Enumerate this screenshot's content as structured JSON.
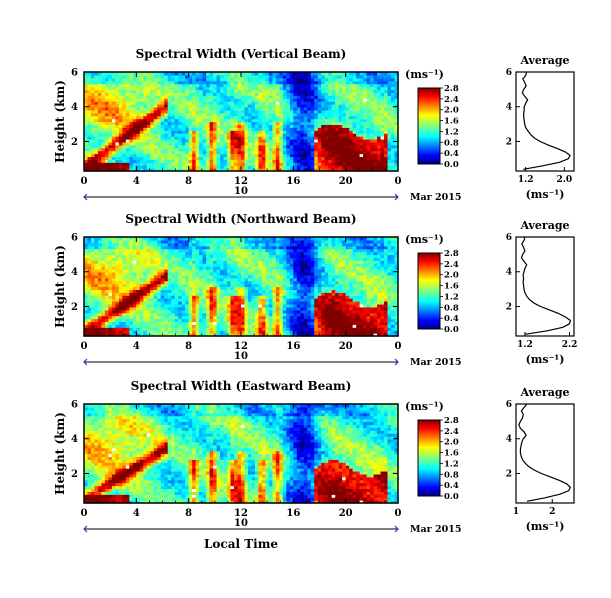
{
  "figure": {
    "shared_xlabel": "Local Time",
    "date_label": "10",
    "month_year": "Mar 2015",
    "colorbar_unit": "(ms⁻¹)",
    "profile_title": "Average",
    "profile_xlabel": "(ms⁻¹)"
  },
  "chart_data": [
    {
      "type": "heatmap",
      "title": "Spectral Width (Vertical Beam)",
      "ylabel": "Height (km)",
      "xlabel": "Local Time",
      "x_ticks": [
        "0",
        "4",
        "8",
        "12",
        "16",
        "20",
        "0"
      ],
      "xlim": [
        0,
        24
      ],
      "y_ticks": [
        "2",
        "4",
        "6"
      ],
      "ylim": [
        0.3,
        6
      ],
      "colorbar": {
        "range": [
          0,
          2.8
        ],
        "ticks": [
          "0.0",
          "0.4",
          "0.8",
          "1.2",
          "1.6",
          "2.0",
          "2.4",
          "2.8"
        ],
        "colormap": "jet",
        "unit": "(ms⁻¹)"
      },
      "profile": {
        "title": "Average",
        "xlim": [
          1.0,
          2.2
        ],
        "x_ticks": [
          "1.2",
          "2.0"
        ],
        "y_ticks": [
          "2",
          "4",
          "6"
        ],
        "height": [
          0.4,
          0.6,
          0.8,
          1.0,
          1.2,
          1.4,
          1.6,
          1.8,
          2.0,
          2.2,
          2.4,
          2.6,
          2.8,
          3.0,
          3.2,
          3.4,
          3.6,
          3.8,
          4.0,
          4.2,
          4.4,
          4.6,
          4.8,
          5.0,
          5.2,
          5.4,
          5.6,
          5.8,
          6.0
        ],
        "value": [
          1.15,
          1.55,
          1.9,
          2.08,
          2.12,
          2.02,
          1.85,
          1.66,
          1.5,
          1.38,
          1.3,
          1.25,
          1.2,
          1.18,
          1.17,
          1.16,
          1.16,
          1.17,
          1.17,
          1.2,
          1.24,
          1.18,
          1.13,
          1.16,
          1.21,
          1.18,
          1.14,
          1.2,
          1.22
        ]
      }
    },
    {
      "type": "heatmap",
      "title": "Spectral Width (Northward Beam)",
      "ylabel": "Height (km)",
      "xlabel": "Local Time",
      "x_ticks": [
        "0",
        "4",
        "8",
        "12",
        "16",
        "20",
        "0"
      ],
      "xlim": [
        0,
        24
      ],
      "y_ticks": [
        "2",
        "4",
        "6"
      ],
      "ylim": [
        0.3,
        6
      ],
      "colorbar": {
        "range": [
          0,
          2.8
        ],
        "ticks": [
          "0.0",
          "0.4",
          "0.8",
          "1.2",
          "1.6",
          "2.0",
          "2.4",
          "2.8"
        ],
        "colormap": "jet",
        "unit": "(ms⁻¹)"
      },
      "profile": {
        "title": "Average",
        "xlim": [
          1.0,
          2.3
        ],
        "x_ticks": [
          "1.2",
          "2.2"
        ],
        "y_ticks": [
          "2",
          "4",
          "6"
        ],
        "height": [
          0.4,
          0.6,
          0.8,
          1.0,
          1.2,
          1.4,
          1.6,
          1.8,
          2.0,
          2.2,
          2.4,
          2.6,
          2.8,
          3.0,
          3.2,
          3.4,
          3.6,
          3.8,
          4.0,
          4.2,
          4.4,
          4.6,
          4.8,
          5.0,
          5.2,
          5.4,
          5.6,
          5.8,
          6.0
        ],
        "value": [
          1.2,
          1.7,
          2.05,
          2.2,
          2.22,
          2.1,
          1.95,
          1.75,
          1.55,
          1.4,
          1.3,
          1.24,
          1.2,
          1.18,
          1.17,
          1.16,
          1.17,
          1.16,
          1.18,
          1.2,
          1.24,
          1.18,
          1.12,
          1.15,
          1.2,
          1.17,
          1.13,
          1.18,
          1.2
        ]
      }
    },
    {
      "type": "heatmap",
      "title": "Spectral Width (Eastward Beam)",
      "ylabel": "Height (km)",
      "xlabel": "Local Time",
      "x_ticks": [
        "0",
        "4",
        "8",
        "12",
        "16",
        "20",
        "0"
      ],
      "xlim": [
        0,
        24
      ],
      "y_ticks": [
        "2",
        "4",
        "6"
      ],
      "ylim": [
        0.3,
        6
      ],
      "colorbar": {
        "range": [
          0,
          2.8
        ],
        "ticks": [
          "0.0",
          "0.4",
          "0.8",
          "1.2",
          "1.6",
          "2.0",
          "2.4",
          "2.8"
        ],
        "colormap": "jet",
        "unit": "(ms⁻¹)"
      },
      "profile": {
        "title": "Average",
        "xlim": [
          1.0,
          2.6
        ],
        "x_ticks": [
          "1",
          "2"
        ],
        "y_ticks": [
          "2",
          "4",
          "6"
        ],
        "height": [
          0.4,
          0.6,
          0.8,
          1.0,
          1.2,
          1.4,
          1.6,
          1.8,
          2.0,
          2.2,
          2.4,
          2.6,
          2.8,
          3.0,
          3.2,
          3.4,
          3.6,
          3.8,
          4.0,
          4.2,
          4.4,
          4.6,
          4.8,
          5.0,
          5.2,
          5.4,
          5.6,
          5.8,
          6.0
        ],
        "value": [
          1.3,
          1.8,
          2.2,
          2.45,
          2.5,
          2.4,
          2.2,
          1.95,
          1.7,
          1.5,
          1.35,
          1.25,
          1.18,
          1.14,
          1.12,
          1.12,
          1.14,
          1.16,
          1.2,
          1.28,
          1.22,
          1.12,
          1.08,
          1.12,
          1.18,
          1.2,
          1.15,
          1.22,
          1.3
        ]
      }
    }
  ]
}
